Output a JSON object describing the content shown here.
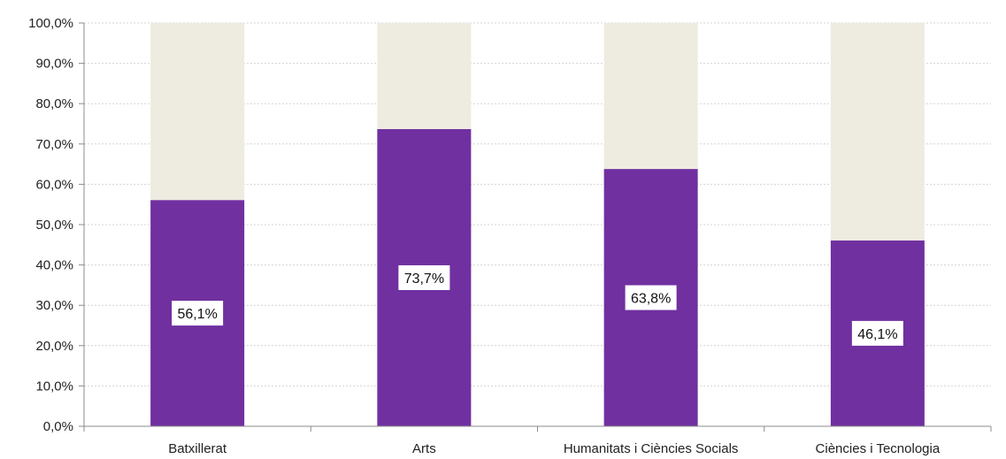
{
  "chart_data": {
    "type": "bar",
    "stacked": true,
    "categories": [
      "Batxillerat",
      "Arts",
      "Humanitats i Ciències Socials",
      "Ciències i Tecnologia"
    ],
    "series": [
      {
        "values": [
          56.1,
          73.7,
          63.8,
          46.1
        ],
        "color": "#7030a0"
      },
      {
        "values": [
          43.9,
          26.3,
          36.2,
          53.9
        ],
        "color": "#eeebe1"
      }
    ],
    "data_labels": [
      "56,1%",
      "73,7%",
      "63,8%",
      "46,1%"
    ],
    "y_ticks": [
      "0,0%",
      "10,0%",
      "20,0%",
      "30,0%",
      "40,0%",
      "50,0%",
      "60,0%",
      "70,0%",
      "80,0%",
      "90,0%",
      "100,0%"
    ],
    "ylim": [
      0,
      100
    ],
    "grid": true,
    "legend": "none",
    "title": "",
    "xlabel": "",
    "ylabel": ""
  }
}
